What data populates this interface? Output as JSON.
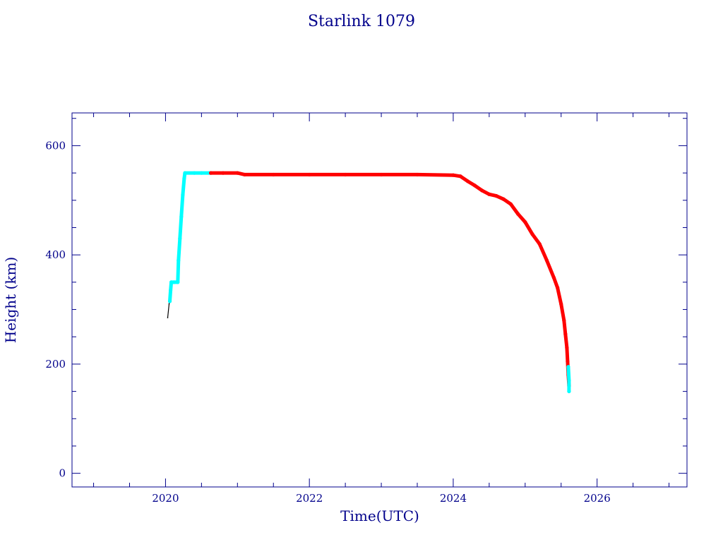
{
  "chart_data": {
    "type": "line",
    "title": "Starlink 1079",
    "xlabel": "Time(UTC)",
    "ylabel": "Height (km)",
    "xlim": [
      2018.7,
      2027.25
    ],
    "ylim": [
      -25,
      660
    ],
    "x_ticks": [
      2020,
      2022,
      2024,
      2026
    ],
    "y_ticks": [
      0,
      200,
      400,
      600
    ],
    "grid": false,
    "legend": "none",
    "colors": {
      "axis": "#00008b",
      "text": "#00008b",
      "cyan_series": "#00ffff",
      "red_series": "#ff0000",
      "black_series": "#000000"
    },
    "series": [
      {
        "color": "#000000",
        "points": [
          [
            2020.03,
            285
          ],
          [
            2020.05,
            310
          ],
          [
            2020.06,
            330
          ]
        ]
      },
      {
        "color": "#00ffff",
        "points": [
          [
            2020.06,
            315
          ],
          [
            2020.07,
            335
          ],
          [
            2020.08,
            350
          ],
          [
            2020.12,
            350
          ],
          [
            2020.17,
            350
          ],
          [
            2020.18,
            390
          ],
          [
            2020.2,
            430
          ],
          [
            2020.22,
            470
          ],
          [
            2020.24,
            510
          ],
          [
            2020.26,
            540
          ],
          [
            2020.27,
            550
          ],
          [
            2020.4,
            550
          ],
          [
            2020.5,
            550
          ],
          [
            2020.62,
            550
          ]
        ]
      },
      {
        "color": "#ff0000",
        "points": [
          [
            2020.63,
            550
          ],
          [
            2020.8,
            550
          ],
          [
            2021.0,
            550
          ],
          [
            2021.1,
            547
          ],
          [
            2021.5,
            547
          ],
          [
            2022.0,
            547
          ],
          [
            2022.5,
            547
          ],
          [
            2023.0,
            547
          ],
          [
            2023.5,
            547
          ],
          [
            2024.0,
            546
          ],
          [
            2024.1,
            544
          ],
          [
            2024.2,
            535
          ],
          [
            2024.3,
            527
          ],
          [
            2024.4,
            518
          ],
          [
            2024.5,
            511
          ],
          [
            2024.6,
            508
          ],
          [
            2024.7,
            502
          ],
          [
            2024.8,
            493
          ],
          [
            2024.9,
            475
          ],
          [
            2025.0,
            460
          ],
          [
            2025.1,
            438
          ],
          [
            2025.2,
            420
          ],
          [
            2025.3,
            390
          ],
          [
            2025.4,
            358
          ],
          [
            2025.45,
            340
          ],
          [
            2025.5,
            310
          ],
          [
            2025.54,
            280
          ],
          [
            2025.56,
            255
          ],
          [
            2025.58,
            230
          ],
          [
            2025.59,
            205
          ],
          [
            2025.6,
            180
          ],
          [
            2025.61,
            160
          ]
        ]
      },
      {
        "color": "#00ffff",
        "points": [
          [
            2025.6,
            195
          ],
          [
            2025.61,
            170
          ],
          [
            2025.61,
            150
          ]
        ]
      }
    ]
  }
}
